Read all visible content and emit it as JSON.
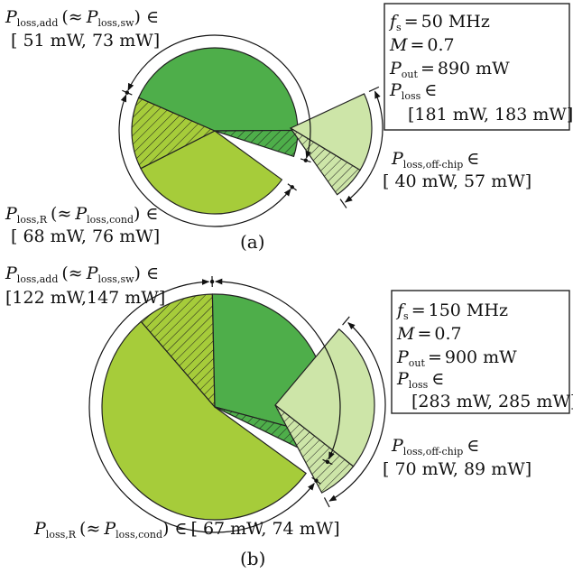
{
  "chart_data": [
    {
      "type": "pie",
      "panel_label": "(a)",
      "info": {
        "fs": "50 MHz",
        "M": "0.7",
        "Pout": "890 mW",
        "Ploss_range": "[181 mW, 183 mW]"
      },
      "groups": {
        "add": {
          "symbol": "P",
          "sub": "loss,add",
          "approx_symbol": "P",
          "approx_sub": "loss,sw",
          "range": "[ 51 mW, 73 mW]",
          "min": 51,
          "max": 73
        },
        "R": {
          "symbol": "P",
          "sub": "loss,R",
          "approx_symbol": "P",
          "approx_sub": "loss,cond",
          "range": "[ 68 mW, 76 mW]",
          "min": 68,
          "max": 76
        },
        "offchip": {
          "symbol": "P",
          "sub": "loss,off-chip",
          "range": "[ 40 mW, 57 mW]",
          "min": 40,
          "max": 57
        }
      },
      "slices": [
        {
          "group": "add",
          "kind": "solid",
          "value": 51,
          "color": "#a6cc3a"
        },
        {
          "group": "add",
          "kind": "hatched",
          "value": 22,
          "color": "#a6cc3a"
        },
        {
          "group": "R",
          "kind": "solid",
          "value": 68,
          "color": "#4eae4a"
        },
        {
          "group": "R",
          "kind": "hatched",
          "value": 8,
          "color": "#4eae4a"
        },
        {
          "group": "offchip",
          "kind": "solid",
          "value": 40,
          "color": "#cde5a8"
        },
        {
          "group": "offchip",
          "kind": "hatched",
          "value": 17,
          "color": "#cde5a8"
        }
      ]
    },
    {
      "type": "pie",
      "panel_label": "(b)",
      "info": {
        "fs": "150 MHz",
        "M": "0.7",
        "Pout": "900 mW",
        "Ploss_range": "[283 mW, 285 mW]"
      },
      "groups": {
        "add": {
          "symbol": "P",
          "sub": "loss,add",
          "approx_symbol": "P",
          "approx_sub": "loss,sw",
          "range": "[122 mW,147 mW]",
          "min": 122,
          "max": 147
        },
        "R": {
          "symbol": "P",
          "sub": "loss,R",
          "approx_symbol": "P",
          "approx_sub": "loss,cond",
          "range": "[ 67 mW, 74 mW]",
          "min": 67,
          "max": 74
        },
        "offchip": {
          "symbol": "P",
          "sub": "loss,off-chip",
          "range": "[ 70 mW, 89 mW]",
          "min": 70,
          "max": 89
        }
      },
      "slices": [
        {
          "group": "add",
          "kind": "solid",
          "value": 122,
          "color": "#a6cc3a"
        },
        {
          "group": "add",
          "kind": "hatched",
          "value": 25,
          "color": "#a6cc3a"
        },
        {
          "group": "R",
          "kind": "solid",
          "value": 67,
          "color": "#4eae4a"
        },
        {
          "group": "R",
          "kind": "hatched",
          "value": 7,
          "color": "#4eae4a"
        },
        {
          "group": "offchip",
          "kind": "solid",
          "value": 70,
          "color": "#cde5a8"
        },
        {
          "group": "offchip",
          "kind": "hatched",
          "value": 19,
          "color": "#cde5a8"
        }
      ]
    }
  ],
  "symbols": {
    "in": "∈",
    "approx": "≈",
    "paren_open": "(",
    "paren_close": ")",
    "equals": "=",
    "fs_symbol": "f",
    "fs_sub": "s",
    "M_symbol": "M",
    "Pout_symbol": "P",
    "Pout_sub": "out",
    "Ploss_symbol": "P",
    "Ploss_sub": "loss"
  }
}
